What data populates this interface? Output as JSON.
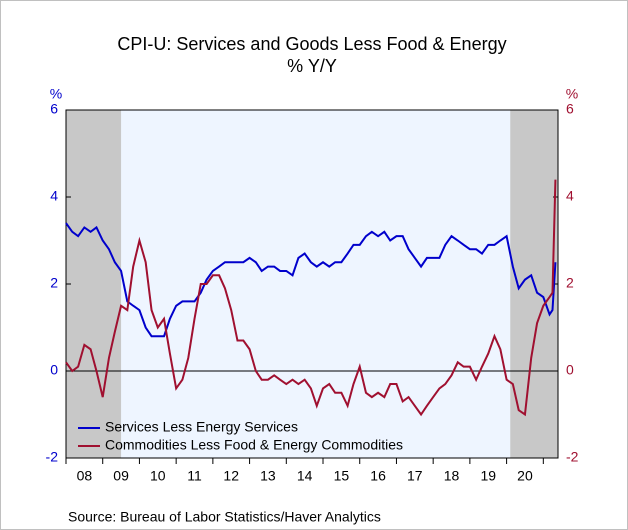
{
  "chart_data": {
    "type": "line",
    "title": "CPI-U: Services and Goods Less Food & Energy",
    "subtitle": "% Y/Y",
    "y_unit": "%",
    "y2_unit": "%",
    "source": "Source:  Bureau of Labor Statistics/Haver Analytics",
    "xlim": [
      2008,
      2021.4
    ],
    "xtick_marks": [
      2008,
      2009,
      2010,
      2011,
      2012,
      2013,
      2014,
      2015,
      2016,
      2017,
      2018,
      2019,
      2020,
      2021
    ],
    "xticks": [
      {
        "value": 2008.5,
        "label": "08"
      },
      {
        "value": 2009.5,
        "label": "09"
      },
      {
        "value": 2010.5,
        "label": "10"
      },
      {
        "value": 2011.5,
        "label": "11"
      },
      {
        "value": 2012.5,
        "label": "12"
      },
      {
        "value": 2013.5,
        "label": "13"
      },
      {
        "value": 2014.5,
        "label": "14"
      },
      {
        "value": 2015.5,
        "label": "15"
      },
      {
        "value": 2016.5,
        "label": "16"
      },
      {
        "value": 2017.5,
        "label": "17"
      },
      {
        "value": 2018.5,
        "label": "18"
      },
      {
        "value": 2019.5,
        "label": "19"
      },
      {
        "value": 2020.5,
        "label": "20"
      }
    ],
    "ylim": [
      -2,
      6
    ],
    "yticks": [
      -2,
      0,
      2,
      4,
      6
    ],
    "y2lim": [
      -2,
      6
    ],
    "y2ticks": [
      -2,
      0,
      2,
      4,
      6
    ],
    "shading": [
      [
        2008,
        2009.5
      ],
      [
        2020.1,
        2021.4
      ]
    ],
    "shading_color": "#c8c8c8",
    "legend": "lower left",
    "x": [
      2008,
      2008.17,
      2008.33,
      2008.5,
      2008.67,
      2008.83,
      2009,
      2009.17,
      2009.33,
      2009.5,
      2009.67,
      2009.83,
      2010,
      2010.17,
      2010.33,
      2010.5,
      2010.67,
      2010.83,
      2011,
      2011.17,
      2011.33,
      2011.5,
      2011.67,
      2011.83,
      2012,
      2012.17,
      2012.33,
      2012.5,
      2012.67,
      2012.83,
      2013,
      2013.17,
      2013.33,
      2013.5,
      2013.67,
      2013.83,
      2014,
      2014.17,
      2014.33,
      2014.5,
      2014.67,
      2014.83,
      2015,
      2015.17,
      2015.33,
      2015.5,
      2015.67,
      2015.83,
      2016,
      2016.17,
      2016.33,
      2016.5,
      2016.67,
      2016.83,
      2017,
      2017.17,
      2017.33,
      2017.5,
      2017.67,
      2017.83,
      2018,
      2018.17,
      2018.33,
      2018.5,
      2018.67,
      2018.83,
      2019,
      2019.17,
      2019.33,
      2019.5,
      2019.67,
      2019.83,
      2020,
      2020.17,
      2020.33,
      2020.5,
      2020.67,
      2020.83,
      2021,
      2021.17,
      2021.25,
      2021.33
    ],
    "series": [
      {
        "name": "Services Less Energy Services",
        "color": "#0000cc",
        "axis": "y",
        "values": [
          3.4,
          3.2,
          3.1,
          3.3,
          3.2,
          3.3,
          3.0,
          2.8,
          2.5,
          2.3,
          1.6,
          1.5,
          1.4,
          1.0,
          0.8,
          0.8,
          0.8,
          1.2,
          1.5,
          1.6,
          1.6,
          1.6,
          1.8,
          2.1,
          2.3,
          2.4,
          2.5,
          2.5,
          2.5,
          2.5,
          2.6,
          2.5,
          2.3,
          2.4,
          2.4,
          2.3,
          2.3,
          2.2,
          2.6,
          2.7,
          2.5,
          2.4,
          2.5,
          2.4,
          2.5,
          2.5,
          2.7,
          2.9,
          2.9,
          3.1,
          3.2,
          3.1,
          3.2,
          3.0,
          3.1,
          3.1,
          2.8,
          2.6,
          2.4,
          2.6,
          2.6,
          2.6,
          2.9,
          3.1,
          3.0,
          2.9,
          2.8,
          2.8,
          2.7,
          2.9,
          2.9,
          3.0,
          3.1,
          2.4,
          1.9,
          2.1,
          2.2,
          1.8,
          1.7,
          1.3,
          1.4,
          2.5
        ]
      },
      {
        "name": "Commodities Less Food & Energy Commodities",
        "color": "#a01030",
        "axis": "y2",
        "values": [
          0.2,
          0.0,
          0.1,
          0.6,
          0.5,
          0.0,
          -0.6,
          0.3,
          0.9,
          1.5,
          1.4,
          2.4,
          3.0,
          2.5,
          1.4,
          1.0,
          1.2,
          0.4,
          -0.4,
          -0.2,
          0.3,
          1.2,
          2.0,
          2.0,
          2.2,
          2.2,
          1.9,
          1.4,
          0.7,
          0.7,
          0.5,
          0.0,
          -0.2,
          -0.2,
          -0.1,
          -0.2,
          -0.3,
          -0.2,
          -0.3,
          -0.2,
          -0.4,
          -0.8,
          -0.4,
          -0.3,
          -0.5,
          -0.5,
          -0.8,
          -0.3,
          0.1,
          -0.5,
          -0.6,
          -0.5,
          -0.6,
          -0.3,
          -0.3,
          -0.7,
          -0.6,
          -0.8,
          -1.0,
          -0.8,
          -0.6,
          -0.4,
          -0.3,
          -0.1,
          0.2,
          0.1,
          0.1,
          -0.2,
          0.1,
          0.4,
          0.8,
          0.5,
          -0.2,
          -0.3,
          -0.9,
          -1.0,
          0.3,
          1.1,
          1.5,
          1.7,
          1.8,
          4.4
        ]
      }
    ]
  }
}
